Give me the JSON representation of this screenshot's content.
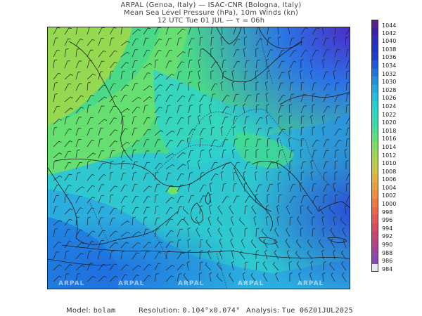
{
  "header": {
    "line1": "ARPAL (Genoa, Italy)  —  ISAC-CNR (Bologna, Italy)",
    "line2": "Mean Sea Level Pressure (hPa), 10m Winds (kn)",
    "line3": "12 UTC Tue 01 JUL  —  τ = 06h"
  },
  "colorbar": {
    "levels": [
      "1044",
      "1042",
      "1040",
      "1038",
      "1036",
      "1034",
      "1032",
      "1030",
      "1028",
      "1026",
      "1024",
      "1022",
      "1020",
      "1018",
      "1016",
      "1014",
      "1012",
      "1010",
      "1008",
      "1006",
      "1004",
      "1002",
      "1000",
      "998",
      "996",
      "994",
      "992",
      "990",
      "988",
      "986",
      "984"
    ],
    "colors": [
      "#6a1fa8",
      "#5a22b8",
      "#4b2cc8",
      "#3d3fd6",
      "#3158e0",
      "#2b74e6",
      "#2690ea",
      "#23a9ea",
      "#22bfe6",
      "#28cfd8",
      "#30dcc4",
      "#3fe2a8",
      "#55e48c",
      "#72e26e",
      "#8fde56",
      "#a8d846",
      "#c0d040",
      "#d6c53c",
      "#e3b33a",
      "#eb9c38",
      "#ef8438",
      "#ef6c3c",
      "#ea5646",
      "#e04456",
      "#d23a68",
      "#c0367c",
      "#ac3690",
      "#963aa4",
      "#7e3eb6",
      "#6a44c4",
      "#5a4acc"
    ],
    "cell_colors": [
      "#5b1f8e",
      "#3b1fa6",
      "#2b2cc0",
      "#2038c8",
      "#1f3fd0",
      "#1e5ad8",
      "#1f74dd",
      "#2090e0",
      "#22a8e0",
      "#22bee0",
      "#24d0d8",
      "#2ad8c6",
      "#33dcae",
      "#45e096",
      "#60e07c",
      "#7fdc64",
      "#9ed650",
      "#b8ce44",
      "#d0c43e",
      "#e0b03a",
      "#eaa038",
      "#f08e3a",
      "#f07a3e",
      "#ec6846",
      "#e45652",
      "#d84a62",
      "#c84476",
      "#b4428c",
      "#9e44a0",
      "#8848b2",
      "#e8e8f8"
    ]
  },
  "map": {
    "watermarks": [
      "ARPAL",
      "ARPAL",
      "ARPAL",
      "ARPAL",
      "ARPAL"
    ]
  },
  "footer": {
    "model_label": "Model:",
    "model_value": "bolam",
    "resolution_label": "Resolution:",
    "resolution_value": "0.104°x0.074°",
    "analysis_label": "Analysis:",
    "analysis_value": "Tue 06Z01JUL2025"
  }
}
